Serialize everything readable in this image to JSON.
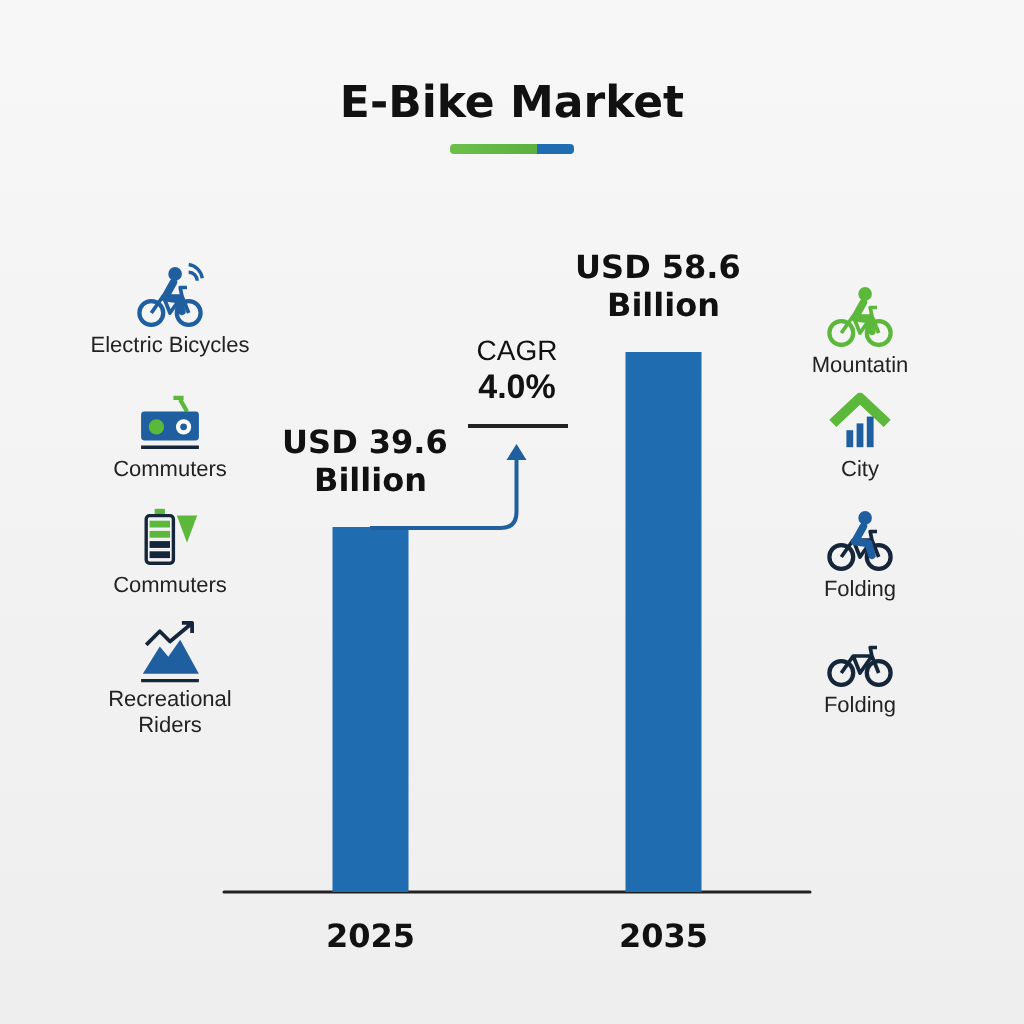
{
  "chart_data": {
    "type": "bar",
    "title": "E-Bike Market",
    "categories": [
      "2025",
      "2035"
    ],
    "values": [
      39.6,
      58.6
    ],
    "color": "#1f6cb0",
    "value_labels": [
      "USD 39.6 Billion",
      "USD 58.6 Billion"
    ],
    "annotations": [
      "Electric Bicycles",
      "Commuters",
      "Commuters",
      "Recreational Riders",
      "Mountatin",
      "City",
      "Folding",
      "Folding",
      "CAGR 4.0%"
    ]
  }
}
